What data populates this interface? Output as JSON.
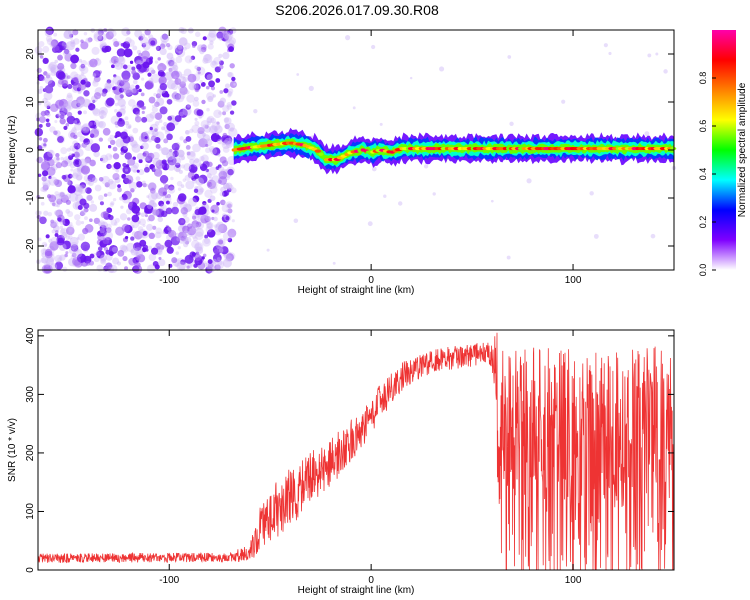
{
  "title": "S206.2026.017.09.30.R08",
  "chart_data": [
    {
      "type": "heatmap",
      "xlabel": "Height of straight line (km)",
      "ylabel": "Frequency (Hz)",
      "xlim": [
        -165,
        150
      ],
      "ylim": [
        -25,
        25
      ],
      "xticks": [
        -100,
        0,
        100
      ],
      "yticks": [
        -20,
        -10,
        0,
        10,
        20
      ],
      "description_of_structure": "",
      "signal_track": {
        "x": [
          -68,
          -60,
          -50,
          -40,
          -33,
          -27,
          -22,
          -17,
          -10,
          -4,
          0,
          5,
          10,
          15,
          30,
          60,
          90,
          120,
          150
        ],
        "freq_hz": [
          0,
          0.5,
          1,
          1.5,
          1,
          0,
          -2,
          -2,
          -0.5,
          0,
          -0.5,
          0,
          -0.5,
          0.3,
          0.3,
          0.3,
          0.3,
          0.3,
          0.3
        ]
      },
      "noise_region_x": [
        -165,
        -68
      ],
      "colorbar": {
        "label": "Normalized spectral amplitude",
        "range": [
          0,
          1
        ],
        "ticks": [
          0.0,
          0.2,
          0.4,
          0.6,
          0.8
        ],
        "tick_labels": [
          "0.0",
          "0.2",
          "0.4",
          "0.6",
          "0.8"
        ],
        "colors": [
          "#ffffff",
          "#7f00ff",
          "#0000ff",
          "#00ffff",
          "#00ff00",
          "#ffff00",
          "#ff8000",
          "#ff0000",
          "#ff00aa"
        ]
      }
    },
    {
      "type": "line",
      "xlabel": "Height of straight line (km)",
      "ylabel": "SNR (10 * v/v)",
      "xlim": [
        -165,
        150
      ],
      "ylim": [
        0,
        410
      ],
      "xticks": [
        -100,
        0,
        100
      ],
      "yticks": [
        0,
        100,
        200,
        300,
        400
      ],
      "color": "#ee3333",
      "envelope": {
        "x": [
          -165,
          -70,
          -60,
          -55,
          -45,
          -35,
          -25,
          -15,
          -5,
          5,
          15,
          25,
          35,
          45,
          55,
          60,
          62,
          65,
          80,
          100,
          120,
          150
        ],
        "mean": [
          20,
          22,
          30,
          70,
          110,
          140,
          170,
          200,
          240,
          290,
          330,
          350,
          360,
          365,
          370,
          365,
          330,
          260,
          250,
          250,
          250,
          260
        ],
        "spread": [
          8,
          8,
          15,
          40,
          50,
          50,
          45,
          40,
          35,
          30,
          25,
          20,
          20,
          20,
          20,
          25,
          80,
          120,
          130,
          130,
          130,
          130
        ]
      }
    }
  ]
}
